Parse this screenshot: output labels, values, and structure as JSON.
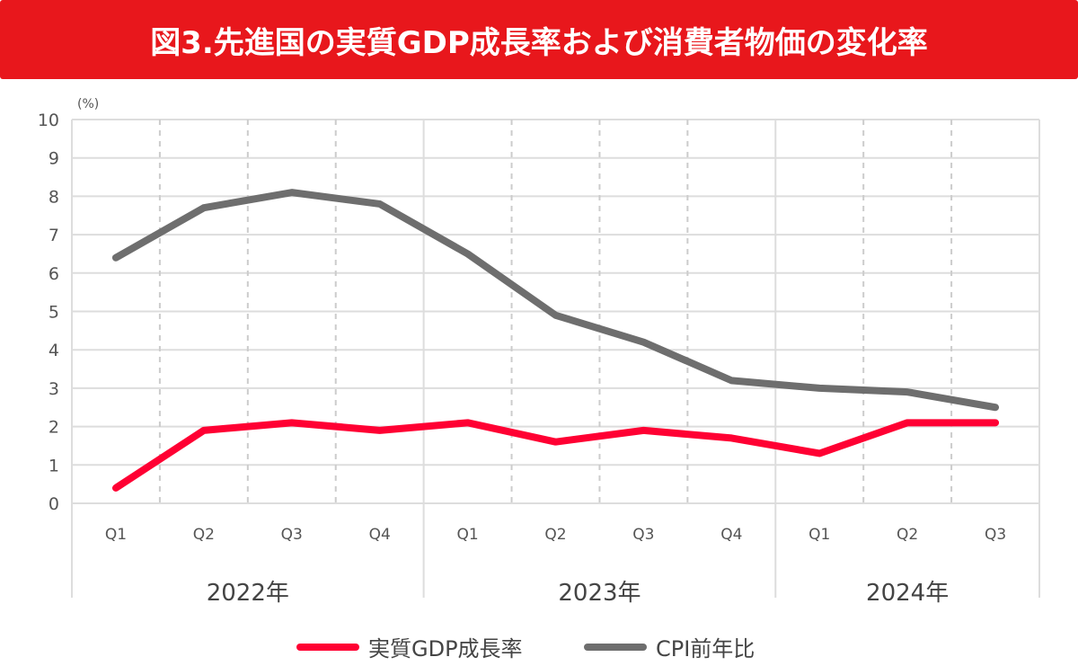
{
  "title": "図3.先進国の実質GDP成長率および消費者物価の変化率",
  "chart_data": {
    "type": "line",
    "title": "図3.先進国の実質GDP成長率および消費者物価の変化率",
    "ylabel": "(%)",
    "ylim": [
      0,
      10
    ],
    "yticks": [
      "0",
      "1",
      "2",
      "3",
      "4",
      "5",
      "6",
      "7",
      "8",
      "9",
      "10"
    ],
    "categories": [
      "Q1",
      "Q2",
      "Q3",
      "Q4",
      "Q1",
      "Q2",
      "Q3",
      "Q4",
      "Q1",
      "Q2",
      "Q3"
    ],
    "groups": [
      {
        "label": "2022年",
        "count": 4
      },
      {
        "label": "2023年",
        "count": 4
      },
      {
        "label": "2024年",
        "count": 3
      }
    ],
    "grid": true,
    "legend": "bottom",
    "series": [
      {
        "name": "実質GDP成長率",
        "color": "#ff0033",
        "values": [
          0.4,
          1.9,
          2.1,
          1.9,
          2.1,
          1.6,
          1.9,
          1.7,
          1.3,
          2.1,
          2.1
        ]
      },
      {
        "name": "CPI前年比",
        "color": "#6e6e6e",
        "values": [
          6.4,
          7.7,
          8.1,
          7.8,
          6.5,
          4.9,
          4.2,
          3.2,
          3.0,
          2.9,
          2.5
        ]
      }
    ]
  }
}
